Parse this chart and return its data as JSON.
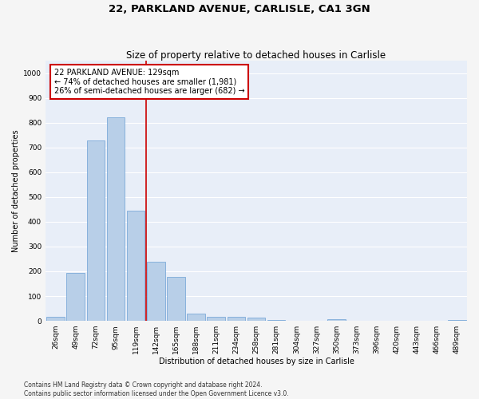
{
  "title": "22, PARKLAND AVENUE, CARLISLE, CA1 3GN",
  "subtitle": "Size of property relative to detached houses in Carlisle",
  "xlabel": "Distribution of detached houses by size in Carlisle",
  "ylabel": "Number of detached properties",
  "categories": [
    "26sqm",
    "49sqm",
    "72sqm",
    "95sqm",
    "119sqm",
    "142sqm",
    "165sqm",
    "188sqm",
    "211sqm",
    "234sqm",
    "258sqm",
    "281sqm",
    "304sqm",
    "327sqm",
    "350sqm",
    "373sqm",
    "396sqm",
    "420sqm",
    "443sqm",
    "466sqm",
    "489sqm"
  ],
  "values": [
    15,
    195,
    728,
    820,
    445,
    238,
    178,
    30,
    18,
    15,
    12,
    5,
    0,
    0,
    8,
    0,
    0,
    0,
    0,
    0,
    5
  ],
  "bar_color": "#b8cfe8",
  "bar_edge_color": "#6b9fd4",
  "vline_x": 4.5,
  "vline_color": "#cc0000",
  "annotation_text": "22 PARKLAND AVENUE: 129sqm\n← 74% of detached houses are smaller (1,981)\n26% of semi-detached houses are larger (682) →",
  "annotation_box_color": "#ffffff",
  "annotation_box_edge_color": "#cc0000",
  "ylim": [
    0,
    1050
  ],
  "yticks": [
    0,
    100,
    200,
    300,
    400,
    500,
    600,
    700,
    800,
    900,
    1000
  ],
  "footnote": "Contains HM Land Registry data © Crown copyright and database right 2024.\nContains public sector information licensed under the Open Government Licence v3.0.",
  "bg_color": "#e8eef8",
  "fig_bg_color": "#f5f5f5",
  "grid_color": "#ffffff",
  "title_fontsize": 9.5,
  "subtitle_fontsize": 8.5,
  "axis_label_fontsize": 7,
  "tick_fontsize": 6.5,
  "footnote_fontsize": 5.5,
  "annotation_fontsize": 7
}
